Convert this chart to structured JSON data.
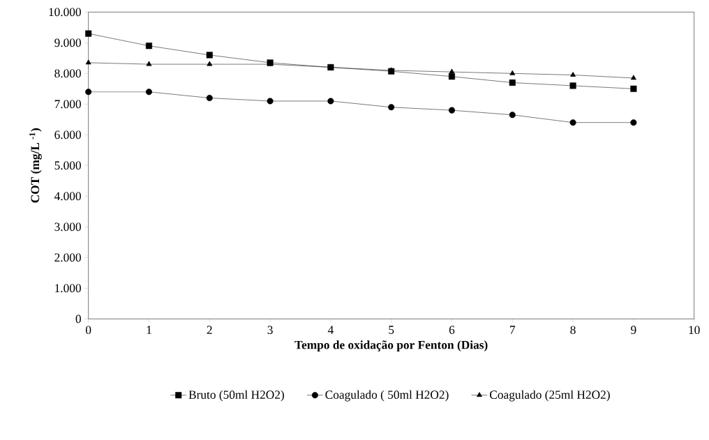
{
  "chart_data": {
    "type": "line",
    "xlabel": "Tempo de oxidação por Fenton (Dias)",
    "ylabel": "COT (mg/L $^{-1}$)",
    "x": [
      0,
      1,
      2,
      3,
      4,
      5,
      6,
      7,
      8,
      9
    ],
    "series": [
      {
        "name": "Bruto (50ml H2O2)",
        "color": "#000000",
        "marker": "square",
        "values": [
          9300,
          8900,
          8600,
          8350,
          8200,
          8070,
          7900,
          7700,
          7600,
          7500
        ]
      },
      {
        "name": "Coagulado ( 50ml H2O2)",
        "color": "#000000",
        "marker": "circle",
        "values": [
          7400,
          7400,
          7200,
          7100,
          7100,
          6900,
          6800,
          6650,
          6400,
          6400
        ]
      },
      {
        "name": "Coagulado (25ml H2O2)",
        "color": "#000000",
        "marker": "triangle",
        "values": [
          8350,
          8300,
          8300,
          8300,
          8200,
          8100,
          8050,
          8000,
          7950,
          7850
        ]
      }
    ],
    "xlim": [
      0,
      10
    ],
    "xticks": [
      0,
      1,
      2,
      3,
      4,
      5,
      6,
      7,
      8,
      9,
      10
    ],
    "ylim": [
      0,
      10000
    ],
    "yticks": [
      0,
      {
        "value": 1000,
        "label": "1.000"
      },
      {
        "value": 2000,
        "label": "2.000"
      },
      {
        "value": 3000,
        "label": "3.000"
      },
      {
        "value": 4000,
        "label": "4.000"
      },
      {
        "value": 5000,
        "label": "5.000"
      },
      {
        "value": 6000,
        "label": "6.000"
      },
      {
        "value": 7000,
        "label": "7.000"
      },
      {
        "value": 8000,
        "label": "8.000"
      },
      {
        "value": 9000,
        "label": "9.000"
      },
      {
        "value": 10000,
        "label": "10.000"
      }
    ],
    "grid": false,
    "legend": "bottom",
    "line_style": "solid"
  }
}
